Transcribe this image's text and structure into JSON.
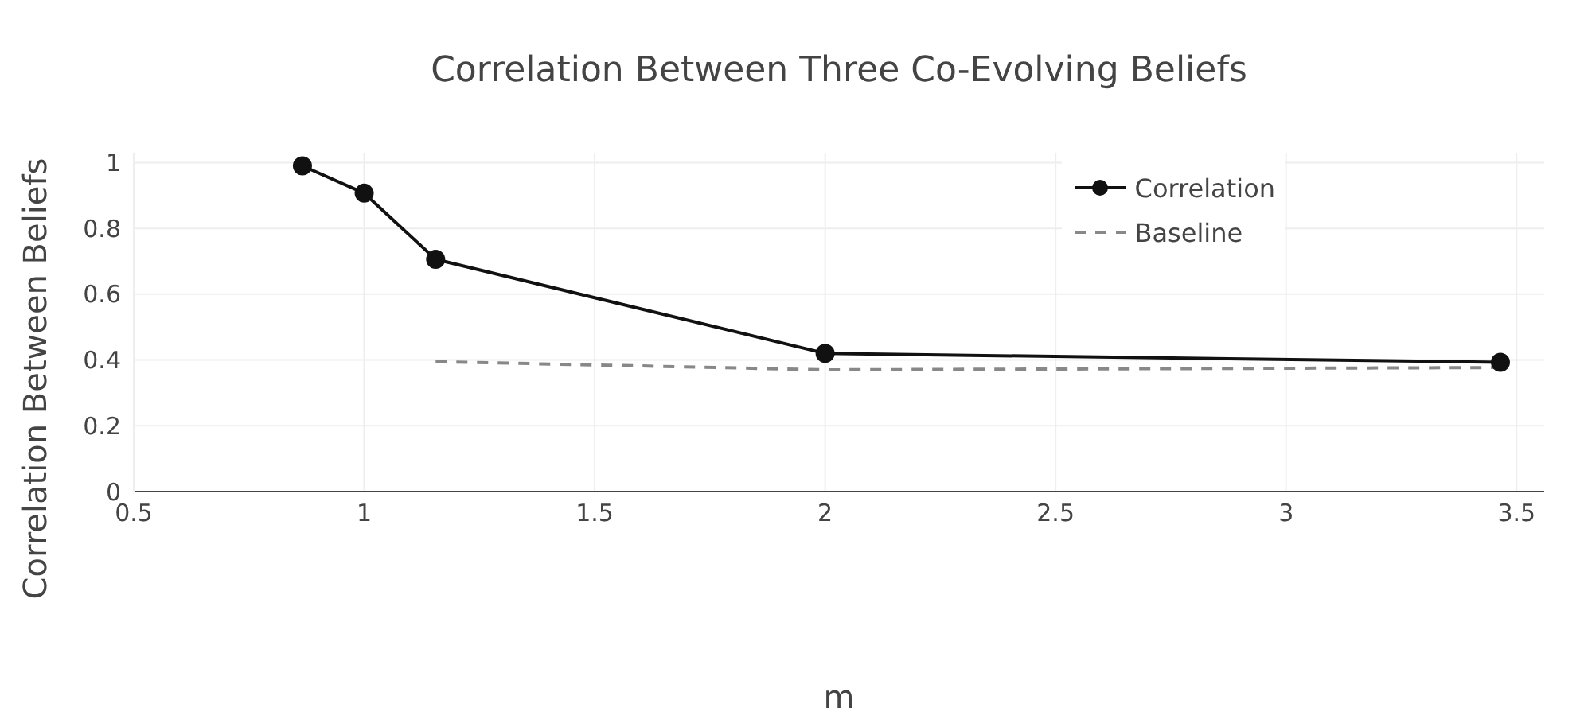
{
  "chart_data": {
    "type": "line",
    "title": "Correlation Between Three Co-Evolving Beliefs",
    "xlabel": "m",
    "ylabel": "Correlation Between Beliefs",
    "series": [
      {
        "name": "Correlation",
        "color": "#111111",
        "x": [
          0.866,
          1.0,
          1.155,
          2.0,
          3.465
        ],
        "values": [
          0.99,
          0.907,
          0.706,
          0.42,
          0.393
        ],
        "marker": "circle",
        "line_style": "solid"
      },
      {
        "name": "Baseline",
        "color": "#888888",
        "x": [
          1.155,
          2.0,
          3.465
        ],
        "values": [
          0.395,
          0.37,
          0.377
        ],
        "marker": "none",
        "line_style": "dashed"
      }
    ],
    "xlim": [
      0.5,
      3.56
    ],
    "xticks": [
      0.5,
      1,
      1.5,
      2,
      2.5,
      3,
      3.5
    ],
    "ylim": [
      0,
      1.03
    ],
    "yticks": [
      0,
      0.2,
      0.4,
      0.6,
      0.8,
      1
    ],
    "grid": true,
    "legend": "top right"
  }
}
